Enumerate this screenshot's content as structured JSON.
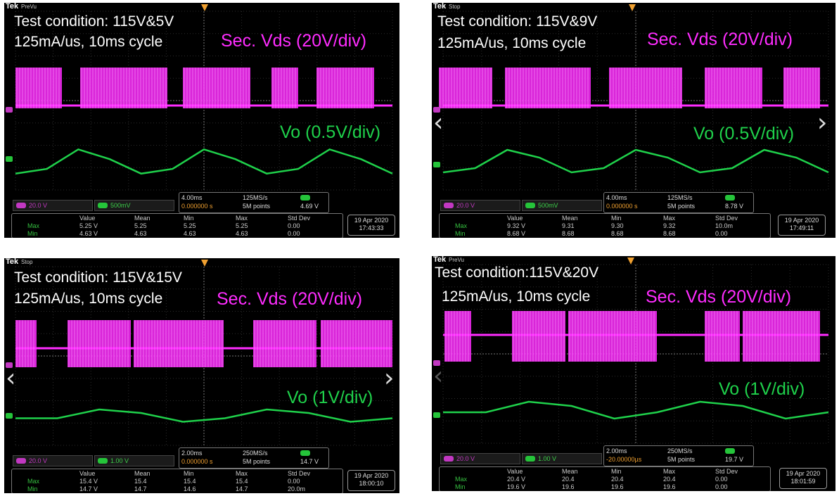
{
  "panels": [
    {
      "tek_state": "PreVu",
      "condition_line1": "Test condition: 115V&5V",
      "condition_line2": "125mA/us, 10ms cycle",
      "secvds_label": "Sec. Vds (20V/div)",
      "vo_label": "Vo (0.5V/div)",
      "ch3_scale": "20.0 V",
      "ch4_scale": "500mV",
      "timebase": "4.00ms",
      "trigger_pos": "0.000000 s",
      "sample_rate": "125MS/s",
      "record_length": "5M points",
      "trigger_level": "4.69 V",
      "meas_header": [
        "Value",
        "Mean",
        "Min",
        "Max",
        "Std Dev"
      ],
      "meas_row1_label": "Max",
      "meas_row1": [
        "5.25 V",
        "5.25",
        "5.25",
        "5.25",
        "0.00"
      ],
      "meas_row2_label": "Min",
      "meas_row2": [
        "4.63 V",
        "4.63",
        "4.63",
        "4.63",
        "0.00"
      ],
      "date": "19 Apr 2020",
      "time": "17:43:33"
    },
    {
      "tek_state": "Stop",
      "condition_line1": "Test condition: 115V&9V",
      "condition_line2": "125mA/us, 10ms cycle",
      "secvds_label": "Sec. Vds (20V/div)",
      "vo_label": "Vo (0.5V/div)",
      "ch3_scale": "20.0 V",
      "ch4_scale": "500mV",
      "timebase": "4.00ms",
      "trigger_pos": "0.000000 s",
      "sample_rate": "125MS/s",
      "record_length": "5M points",
      "trigger_level": "8.78 V",
      "meas_header": [
        "Value",
        "Mean",
        "Min",
        "Max",
        "Std Dev"
      ],
      "meas_row1_label": "Max",
      "meas_row1": [
        "9.32 V",
        "9.31",
        "9.30",
        "9.32",
        "10.0m"
      ],
      "meas_row2_label": "Min",
      "meas_row2": [
        "8.68 V",
        "8.68",
        "8.68",
        "8.68",
        "0.00"
      ],
      "date": "19 Apr 2020",
      "time": "17:49:11"
    },
    {
      "tek_state": "Stop",
      "condition_line1": "Test condition: 115V&15V",
      "condition_line2": "125mA/us, 10ms cycle",
      "secvds_label": "Sec. Vds (20V/div)",
      "vo_label": "Vo (1V/div)",
      "ch3_scale": "20.0 V",
      "ch4_scale": "1.00 V",
      "timebase": "2.00ms",
      "trigger_pos": "0.000000 s",
      "sample_rate": "250MS/s",
      "record_length": "5M points",
      "trigger_level": "14.7 V",
      "meas_header": [
        "Value",
        "Mean",
        "Min",
        "Max",
        "Std Dev"
      ],
      "meas_row1_label": "Max",
      "meas_row1": [
        "15.4 V",
        "15.4",
        "15.4",
        "15.4",
        "0.00"
      ],
      "meas_row2_label": "Min",
      "meas_row2": [
        "14.7 V",
        "14.7",
        "14.6",
        "14.7",
        "20.0m"
      ],
      "date": "19 Apr 2020",
      "time": "18:00:10"
    },
    {
      "tek_state": "PreVu",
      "condition_line1": "Test condition:115V&20V",
      "condition_line2": "125mA/us, 10ms cycle",
      "secvds_label": "Sec. Vds (20V/div)",
      "vo_label": "Vo (1V/div)",
      "ch3_scale": "20.0 V",
      "ch4_scale": "1.00 V",
      "timebase": "2.00ms",
      "trigger_pos": "-20.00000µs",
      "sample_rate": "250MS/s",
      "record_length": "5M points",
      "trigger_level": "19.7 V",
      "meas_header": [
        "Value",
        "Mean",
        "Min",
        "Max",
        "Std Dev"
      ],
      "meas_row1_label": "Max",
      "meas_row1": [
        "20.4 V",
        "20.4",
        "20.4",
        "20.4",
        "0.00"
      ],
      "meas_row2_label": "Min",
      "meas_row2": [
        "19.6 V",
        "19.6",
        "19.6",
        "19.6",
        "0.00"
      ],
      "date": "19 Apr 2020",
      "time": "18:01:59"
    }
  ],
  "tek_brand": "Tek",
  "colors": {
    "ch3": "#ff2cff",
    "ch4": "#1fd14b",
    "trigger": "#f0a030"
  },
  "chart_data": [
    {
      "type": "line",
      "series": [
        {
          "name": "Vo",
          "values": [
            4.63,
            4.75,
            5.25,
            5.0,
            4.63,
            4.75,
            5.25,
            5.0,
            4.63,
            4.75,
            5.25,
            5.0,
            4.63
          ]
        },
        {
          "name": "Sec. Vds",
          "values": []
        }
      ],
      "ylim": [
        4.5,
        5.4
      ]
    },
    {
      "type": "line",
      "series": [
        {
          "name": "Vo",
          "values": [
            8.68,
            8.8,
            9.32,
            9.1,
            8.68,
            8.8,
            9.32,
            9.1,
            8.68,
            8.8,
            9.32,
            9.1,
            8.68
          ]
        },
        {
          "name": "Sec. Vds",
          "values": []
        }
      ],
      "ylim": [
        8.5,
        9.5
      ]
    },
    {
      "type": "line",
      "series": [
        {
          "name": "Vo",
          "values": [
            14.9,
            14.9,
            15.4,
            15.2,
            14.7,
            14.9,
            15.4,
            15.2,
            14.7,
            14.9
          ]
        },
        {
          "name": "Sec. Vds",
          "values": []
        }
      ],
      "ylim": [
        14.4,
        15.8
      ]
    },
    {
      "type": "line",
      "series": [
        {
          "name": "Vo",
          "values": [
            19.9,
            19.9,
            20.4,
            20.2,
            19.6,
            19.9,
            20.4,
            20.2,
            19.6,
            19.9
          ]
        },
        {
          "name": "Sec. Vds",
          "values": []
        }
      ],
      "ylim": [
        19.3,
        20.8
      ]
    }
  ]
}
